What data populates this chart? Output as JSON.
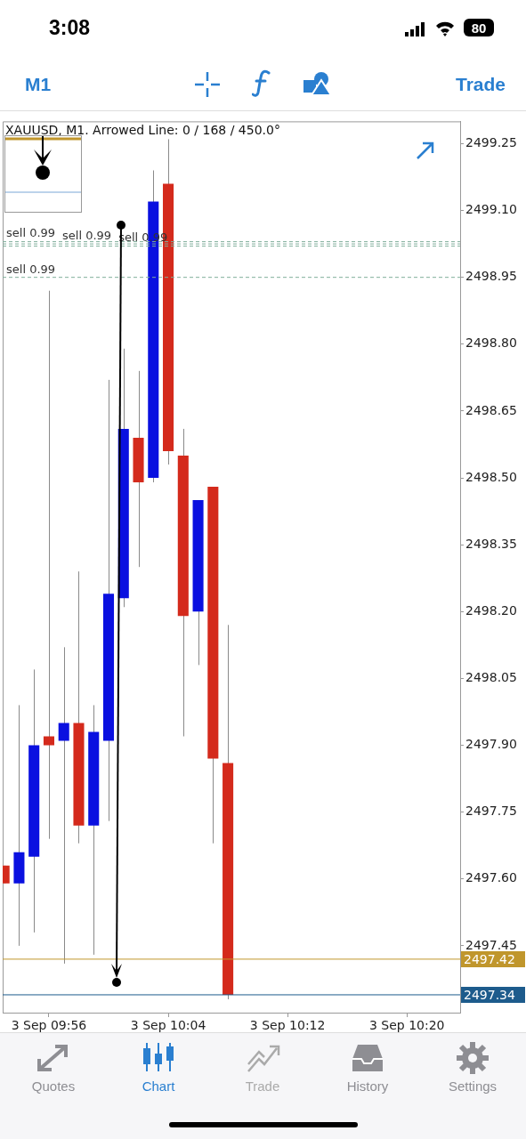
{
  "chart_data": {
    "type": "candlestick",
    "title": "XAUUSD, M1. Arrowed Line: 0 / 168 / 450.0°",
    "x": [
      "--09-03T09:53",
      "--09-03T09:54",
      "--09-03T09:55",
      "--09-03T09:56",
      "--09-03T09:57",
      "--09-03T09:58",
      "--09-03T09:59",
      "--09-03T10:00",
      "--09-03T10:01",
      "--09-03T10:02",
      "--09-03T10:03",
      "--09-03T10:04",
      "--09-03T10:05",
      "--09-03T10:06",
      "--09-03T10:07",
      "--09-03T10:08"
    ],
    "ohlc": [
      [
        2497.63,
        2497.63,
        2497.59,
        2497.59
      ],
      [
        2497.59,
        2497.99,
        2497.45,
        2497.66
      ],
      [
        2497.65,
        2498.07,
        2497.48,
        2497.9
      ],
      [
        2497.92,
        2498.92,
        2497.69,
        2497.9
      ],
      [
        2497.91,
        2498.12,
        2497.41,
        2497.95
      ],
      [
        2497.95,
        2498.29,
        2497.68,
        2497.72
      ],
      [
        2497.72,
        2497.99,
        2497.43,
        2497.93
      ],
      [
        2497.91,
        2498.72,
        2497.73,
        2498.24
      ],
      [
        2498.23,
        2498.79,
        2498.21,
        2498.61
      ],
      [
        2498.59,
        2498.74,
        2498.3,
        2498.49
      ],
      [
        2498.5,
        2499.19,
        2498.49,
        2499.12
      ],
      [
        2499.16,
        2499.26,
        2498.53,
        2498.56
      ],
      [
        2498.55,
        2498.61,
        2497.92,
        2498.19
      ],
      [
        2498.2,
        2498.45,
        2498.08,
        2498.45
      ],
      [
        2498.48,
        2498.48,
        2497.68,
        2497.87
      ],
      [
        2497.86,
        2498.17,
        2497.33,
        2497.34
      ]
    ],
    "colors": [
      "#d42a1c",
      "#0a10e0",
      "#0a10e0",
      "#d42a1c",
      "#0a10e0",
      "#d42a1c",
      "#0a10e0",
      "#0a10e0",
      "#0a10e0",
      "#d42a1c",
      "#0a10e0",
      "#d42a1c",
      "#d42a1c",
      "#0a10e0",
      "#d42a1c",
      "#d42a1c"
    ],
    "xlim": [
      "--09-03T09:52:54",
      "--09-03T10:23:34"
    ],
    "xticks": [
      {
        "value": "--09-03T09:56",
        "label": "3 Sep 09:56"
      },
      {
        "value": "--09-03T10:04",
        "label": "3 Sep 10:04"
      },
      {
        "value": "--09-03T10:12",
        "label": "3 Sep 10:12"
      },
      {
        "value": "--09-03T10:20",
        "label": "3 Sep 10:20"
      }
    ],
    "ylim": [
      2497.3,
      2499.3
    ],
    "yticks": [
      2499.25,
      {
        "value": 2499.1,
        "label": "2499.10"
      },
      2498.95,
      {
        "value": 2498.8,
        "label": "2498.80"
      },
      2498.65,
      {
        "value": 2498.5,
        "label": "2498.50"
      },
      2498.35,
      {
        "value": 2498.2,
        "label": "2498.20"
      },
      2498.05,
      {
        "value": 2497.9,
        "label": "2497.90"
      },
      2497.75,
      {
        "value": 2497.6,
        "label": "2497.60"
      },
      2497.45
    ],
    "ref_lines": [
      {
        "axis": "y",
        "value": 2499.03,
        "label": "sell 0.99",
        "color": "#7fae9a",
        "line_style": "dashed"
      },
      {
        "axis": "y",
        "value": 2499.025,
        "label": "sell 0.99",
        "color": "#7fae9a",
        "line_style": "dashed"
      },
      {
        "axis": "y",
        "value": 2499.02,
        "label": "sell 0.99",
        "color": "#7fae9a",
        "line_style": "dashed"
      },
      {
        "axis": "y",
        "value": 2498.95,
        "label": "sell 0.99",
        "color": "#7fae9a",
        "line_style": "dashed"
      },
      {
        "axis": "y",
        "value": 2497.42,
        "label": "2497.42",
        "color": "#c0962c",
        "line_style": "solid"
      },
      {
        "axis": "y",
        "value": 2497.34,
        "label": "2497.34",
        "color": "#1d5b8c",
        "line_style": "solid"
      }
    ],
    "annotations": [
      "3:08",
      "80",
      "M1",
      "Trade",
      "Quotes",
      "Chart",
      "Trade",
      "History",
      "Settings"
    ],
    "grid": false,
    "legend": false
  }
}
